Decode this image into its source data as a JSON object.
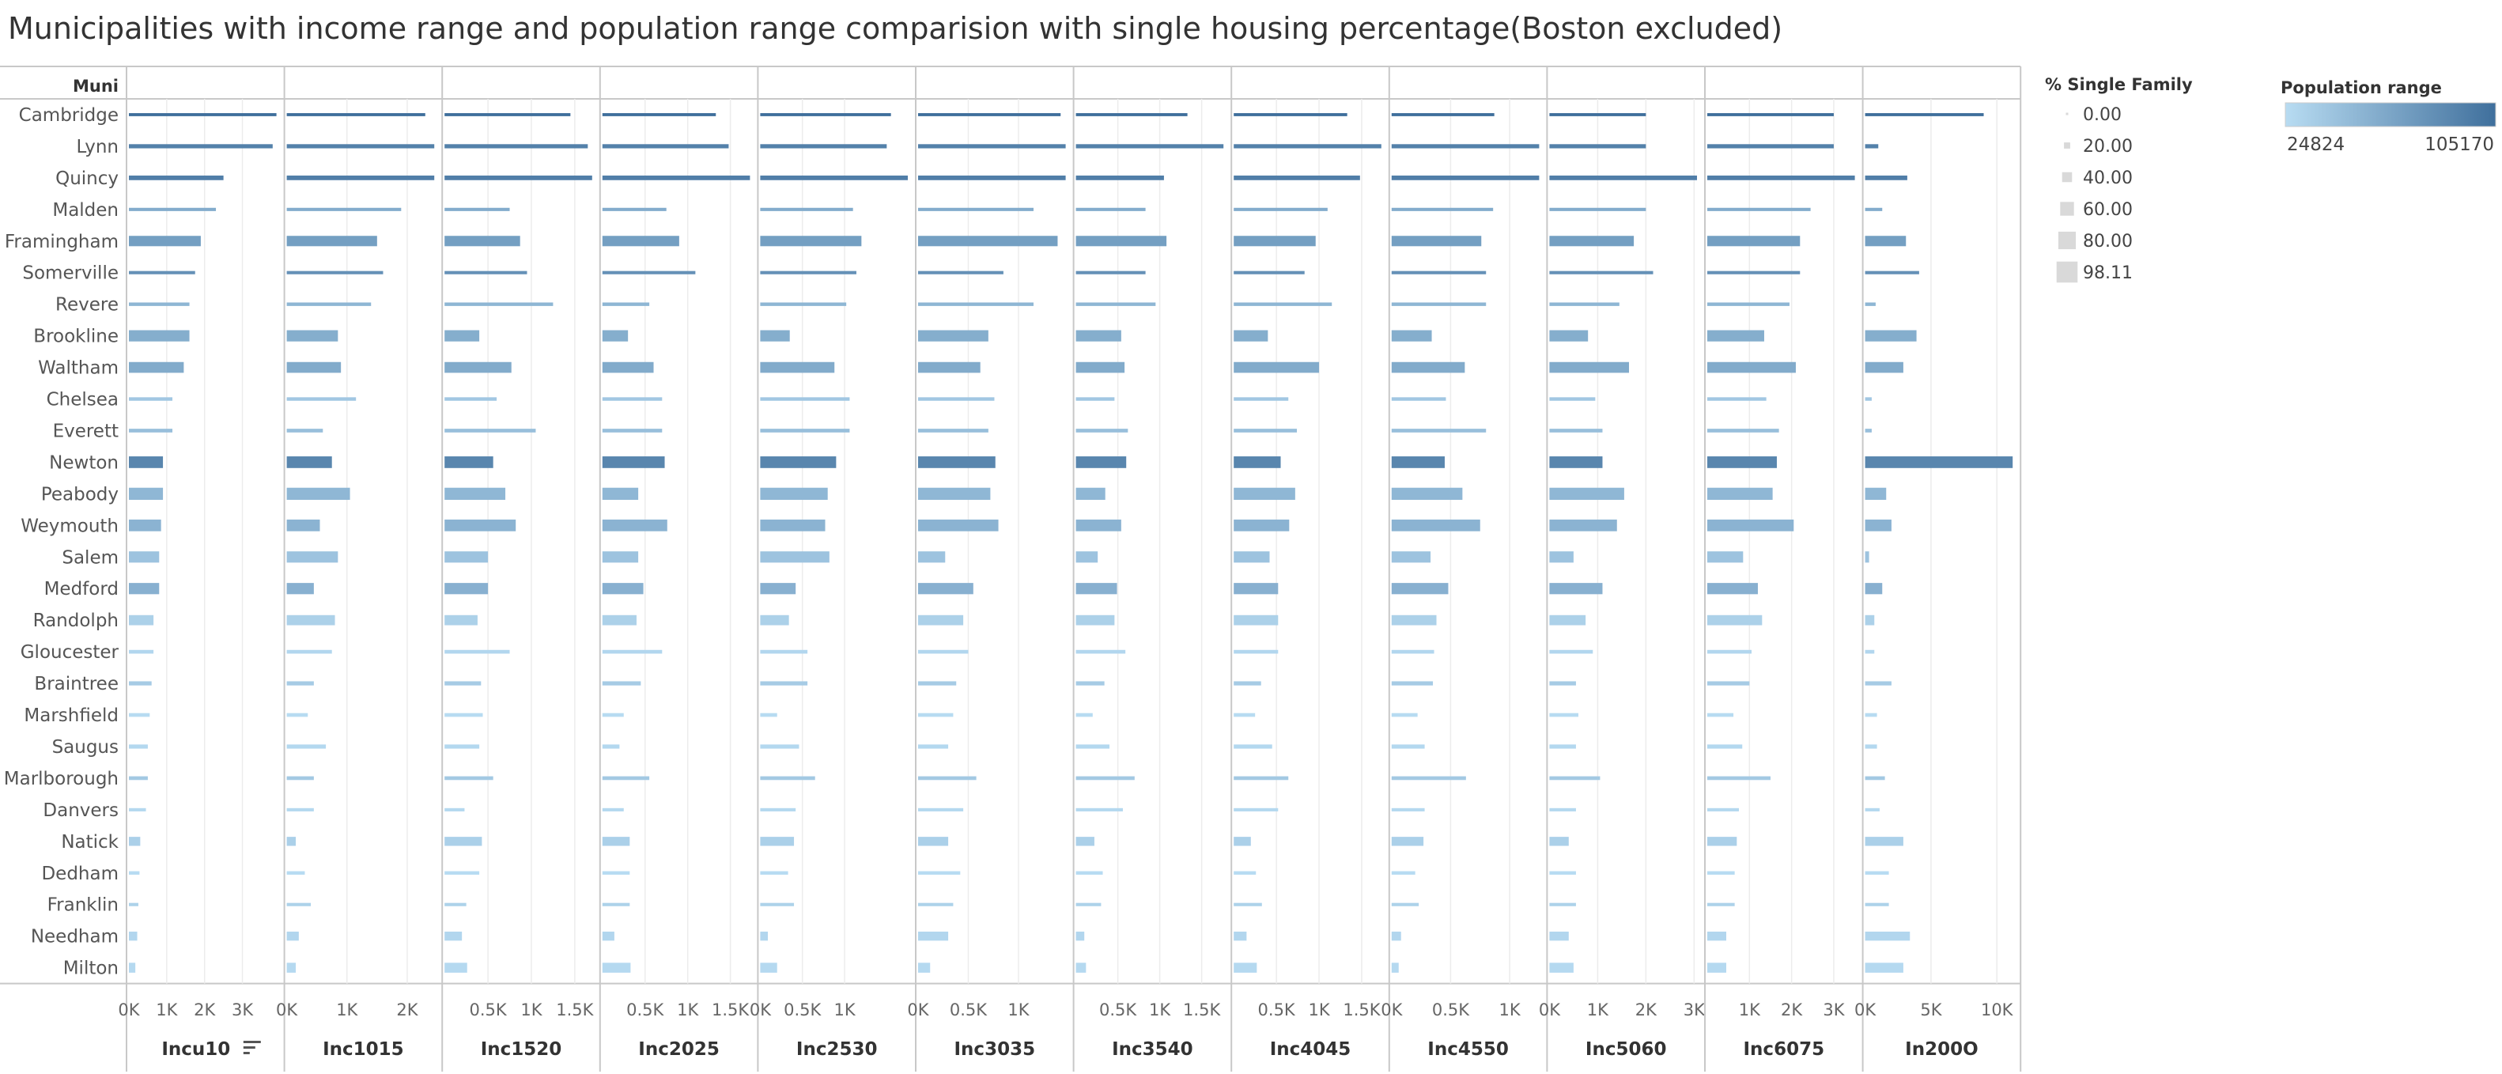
{
  "title": "Municipalities with income range and population range comparision with single housing percentage(Boston excluded)",
  "row_header": "Muni",
  "sort_icon": "sort-descending-icon",
  "colors": {
    "bar_low": "#b8dcf2",
    "bar_high": "#3f6f9c",
    "axis": "#c8c8c8",
    "grid": "#ececec",
    "size_legend_fill": "#d9d9d9"
  },
  "legends": {
    "size": {
      "title": "% Single Family",
      "items": [
        "0.00",
        "20.00",
        "40.00",
        "60.00",
        "80.00",
        "98.11"
      ],
      "values": [
        0,
        20,
        40,
        60,
        80,
        98.11
      ]
    },
    "color": {
      "title": "Population range",
      "min_label": "24824",
      "max_label": "105170",
      "min": 24824,
      "max": 105170
    }
  },
  "chart_data": {
    "type": "bar",
    "orientation": "horizontal",
    "title": "Municipalities with income range and population range comparision with single housing percentage(Boston excluded)",
    "row_field": "Muni",
    "size_field": "% Single Family",
    "color_field": "Population range",
    "categories": [
      "Cambridge",
      "Lynn",
      "Quincy",
      "Malden",
      "Framingham",
      "Somerville",
      "Revere",
      "Brookline",
      "Waltham",
      "Chelsea",
      "Everett",
      "Newton",
      "Peabody",
      "Weymouth",
      "Salem",
      "Medford",
      "Randolph",
      "Gloucester",
      "Braintree",
      "Marshfield",
      "Saugus",
      "Marlborough",
      "Danvers",
      "Natick",
      "Dedham",
      "Franklin",
      "Needham",
      "Milton"
    ],
    "population": [
      105170,
      92000,
      94000,
      60000,
      70000,
      80000,
      53000,
      59000,
      61000,
      40000,
      46000,
      88000,
      52000,
      55000,
      43000,
      57000,
      33000,
      29000,
      37000,
      25500,
      28000,
      39000,
      27500,
      33500,
      25200,
      32000,
      28900,
      27000
    ],
    "single_family_pct": [
      3,
      8,
      10,
      4,
      36,
      4,
      5,
      40,
      38,
      5,
      6,
      42,
      44,
      42,
      40,
      40,
      35,
      6,
      8,
      6,
      8,
      6,
      4,
      30,
      5,
      4,
      30,
      34
    ],
    "series": [
      {
        "name": "Incu10",
        "xlim": [
          0,
          3900
        ],
        "ticks": [
          0,
          1000,
          2000,
          3000
        ],
        "tick_labels": [
          "0K",
          "1K",
          "2K",
          "3K"
        ],
        "sorted": true,
        "values": [
          3900,
          3800,
          2500,
          2300,
          1900,
          1750,
          1600,
          1600,
          1450,
          1150,
          1150,
          900,
          900,
          850,
          800,
          800,
          650,
          650,
          600,
          550,
          500,
          500,
          450,
          300,
          280,
          250,
          220,
          170
        ]
      },
      {
        "name": "Inc1015",
        "xlim": [
          0,
          2450
        ],
        "ticks": [
          0,
          1000,
          2000
        ],
        "tick_labels": [
          "0K",
          "1K",
          "2K"
        ],
        "values": [
          2300,
          2450,
          2450,
          1900,
          1500,
          1600,
          1400,
          850,
          900,
          1150,
          600,
          750,
          1050,
          550,
          850,
          450,
          800,
          750,
          450,
          350,
          650,
          450,
          450,
          150,
          300,
          400,
          200,
          150
        ]
      },
      {
        "name": "Inc1520",
        "xlim": [
          0,
          1700
        ],
        "ticks": [
          500,
          1000,
          1500
        ],
        "tick_labels": [
          "0.5K",
          "1K",
          "1.5K"
        ],
        "values": [
          1450,
          1650,
          1700,
          750,
          870,
          950,
          1250,
          400,
          770,
          600,
          1050,
          560,
          700,
          820,
          500,
          500,
          380,
          750,
          420,
          440,
          400,
          560,
          230,
          430,
          400,
          250,
          200,
          260
        ]
      },
      {
        "name": "Inc2025",
        "xlim": [
          0,
          1730
        ],
        "ticks": [
          500,
          1000,
          1500
        ],
        "tick_labels": [
          "0.5K",
          "1K",
          "1.5K"
        ],
        "values": [
          1330,
          1480,
          1730,
          750,
          900,
          1090,
          550,
          300,
          600,
          700,
          700,
          730,
          420,
          760,
          420,
          480,
          400,
          700,
          450,
          250,
          200,
          550,
          250,
          320,
          320,
          320,
          140,
          330
        ]
      },
      {
        "name": "Inc2530",
        "xlim": [
          0,
          1750
        ],
        "ticks": [
          0,
          500,
          1000
        ],
        "tick_labels": [
          "0K",
          "0.5K",
          "1K"
        ],
        "values": [
          1550,
          1500,
          1750,
          1100,
          1200,
          1140,
          1020,
          350,
          880,
          1060,
          1060,
          900,
          800,
          770,
          820,
          420,
          340,
          560,
          560,
          200,
          460,
          650,
          420,
          400,
          330,
          400,
          90,
          200
        ]
      },
      {
        "name": "Inc3035",
        "xlim": [
          0,
          1470
        ],
        "ticks": [
          0,
          500,
          1000
        ],
        "tick_labels": [
          "0K",
          "0.5K",
          "1K"
        ],
        "values": [
          1420,
          1470,
          1470,
          1150,
          1390,
          850,
          1150,
          700,
          620,
          760,
          700,
          770,
          720,
          800,
          270,
          550,
          450,
          500,
          380,
          350,
          300,
          580,
          450,
          300,
          420,
          350,
          300,
          120
        ]
      },
      {
        "name": "Inc3540",
        "xlim": [
          0,
          1760
        ],
        "ticks": [
          500,
          1000,
          1500
        ],
        "tick_labels": [
          "0.5K",
          "1K",
          "1.5K"
        ],
        "values": [
          1330,
          1760,
          1050,
          830,
          1080,
          830,
          950,
          540,
          580,
          460,
          620,
          600,
          350,
          540,
          260,
          490,
          460,
          590,
          340,
          200,
          400,
          700,
          560,
          220,
          320,
          300,
          100,
          120
        ]
      },
      {
        "name": "Inc4045",
        "xlim": [
          0,
          1730
        ],
        "ticks": [
          500,
          1000,
          1500
        ],
        "tick_labels": [
          "0.5K",
          "1K",
          "1.5K"
        ],
        "values": [
          1330,
          1730,
          1480,
          1100,
          960,
          830,
          1150,
          400,
          1000,
          640,
          740,
          550,
          720,
          650,
          420,
          520,
          520,
          520,
          320,
          250,
          450,
          640,
          520,
          200,
          260,
          330,
          150,
          270
        ]
      },
      {
        "name": "Inc4550",
        "xlim": [
          0,
          1250
        ],
        "ticks": [
          0,
          500,
          1000
        ],
        "tick_labels": [
          "0K",
          "0.5K",
          "1K"
        ],
        "values": [
          870,
          1250,
          1250,
          860,
          760,
          800,
          800,
          340,
          620,
          460,
          800,
          450,
          600,
          750,
          330,
          480,
          380,
          360,
          350,
          220,
          280,
          630,
          280,
          270,
          200,
          230,
          80,
          60
        ]
      },
      {
        "name": "Inc5060",
        "xlim": [
          0,
          3060
        ],
        "ticks": [
          0,
          1000,
          2000,
          3000
        ],
        "tick_labels": [
          "0K",
          "1K",
          "2K",
          "3K"
        ],
        "tick_offset": 0,
        "values": [
          2000,
          2000,
          3060,
          2000,
          1750,
          2150,
          1450,
          800,
          1650,
          950,
          1100,
          1100,
          1550,
          1400,
          500,
          1100,
          750,
          900,
          550,
          600,
          550,
          1050,
          550,
          400,
          550,
          550,
          400,
          500
        ]
      },
      {
        "name": "Inc6075",
        "xlim": [
          0,
          3500
        ],
        "ticks": [
          1000,
          2000,
          3000
        ],
        "tick_labels": [
          "1K",
          "2K",
          "3K"
        ],
        "values": [
          3000,
          3000,
          3500,
          2450,
          2200,
          2200,
          1950,
          1350,
          2100,
          1400,
          1700,
          1650,
          1550,
          2050,
          850,
          1200,
          1300,
          1050,
          1000,
          620,
          830,
          1500,
          750,
          700,
          650,
          650,
          450,
          450
        ]
      },
      {
        "name": "In200O",
        "xlim": [
          0,
          11200
        ],
        "ticks": [
          0,
          5000,
          10000
        ],
        "tick_labels": [
          "0K",
          "5K",
          "10K"
        ],
        "values": [
          9000,
          1000,
          3200,
          1300,
          3100,
          4100,
          800,
          3900,
          2900,
          500,
          500,
          11200,
          1600,
          2000,
          300,
          1300,
          700,
          700,
          2000,
          900,
          900,
          1500,
          1100,
          2900,
          1800,
          1800,
          3400,
          2900
        ]
      }
    ]
  }
}
